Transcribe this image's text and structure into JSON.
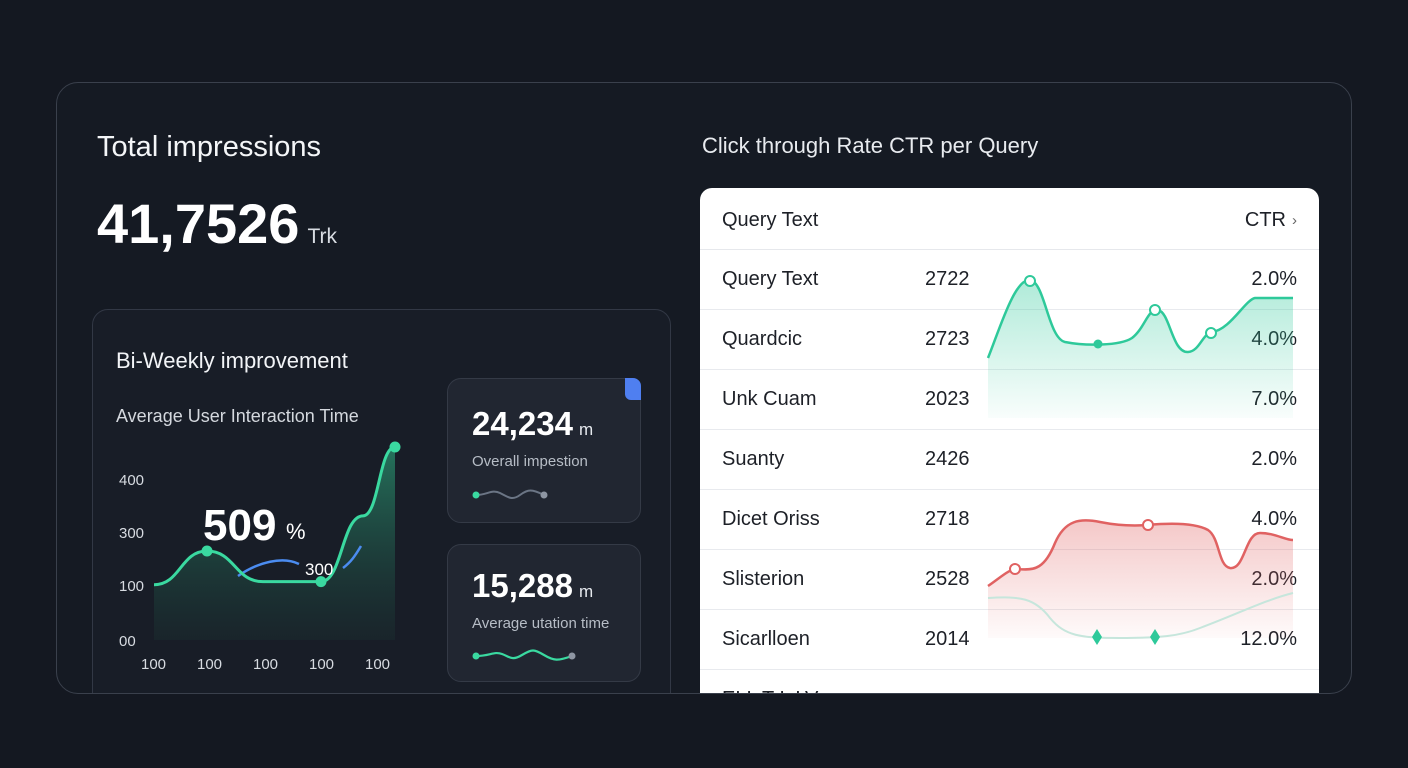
{
  "total": {
    "title": "Total impressions",
    "value": "41,7526",
    "unit": "Trk"
  },
  "biweekly": {
    "title": "Bi-Weekly improvement",
    "subtitle": "Average User Interaction Time",
    "big_value": "509",
    "big_unit": "%",
    "callout": "300",
    "accent_green": "#3ad9a0",
    "accent_blue": "#4b8cf0"
  },
  "chart_data": {
    "type": "line",
    "title": "Average User Interaction Time",
    "y_ticks": [
      "400",
      "300",
      "100",
      "00"
    ],
    "x_ticks": [
      "100",
      "100",
      "100",
      "100",
      "100"
    ],
    "series": [
      {
        "values": [
          0.1,
          0.32,
          0.12,
          0.12,
          0.55,
          1.0
        ]
      }
    ]
  },
  "mini_cards": [
    {
      "value": "24,234",
      "unit": "m",
      "label": "Overall impestion"
    },
    {
      "value": "15,288",
      "unit": "m",
      "label": "Average utation time"
    }
  ],
  "ctr": {
    "title": "Click through Rate CTR per Query",
    "header_query": "Query Text",
    "header_ctr": "CTR",
    "rows": [
      {
        "query": "Query Text",
        "count": "2722",
        "ctr": "2.0%"
      },
      {
        "query": "Quardcic",
        "count": "2723",
        "ctr": "4.0%"
      },
      {
        "query": "Unk Cuam",
        "count": "2023",
        "ctr": "7.0%"
      },
      {
        "query": "Suanty",
        "count": "2426",
        "ctr": "2.0%"
      },
      {
        "query": "Dicet Oriss",
        "count": "2718",
        "ctr": "4.0%"
      },
      {
        "query": "Slisterion",
        "count": "2528",
        "ctr": "2.0%"
      },
      {
        "query": "Sicarlloen",
        "count": "2014",
        "ctr": "12.0%"
      },
      {
        "query": "ELL T L LV",
        "count": "",
        "ctr": ""
      }
    ],
    "green_color": "#2ec99a",
    "red_color": "#e06262"
  }
}
